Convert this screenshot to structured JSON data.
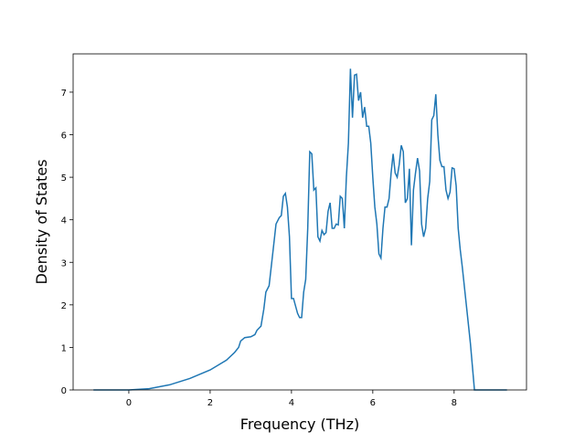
{
  "chart_data": {
    "type": "line",
    "x_label": "Frequency (THz)",
    "y_label": "Density of States",
    "x": [
      -0.87,
      0,
      0.5,
      1,
      1.5,
      2,
      2.4,
      2.6,
      2.7,
      2.75,
      2.85,
      3.0,
      3.1,
      3.15,
      3.25,
      3.32,
      3.37,
      3.45,
      3.55,
      3.62,
      3.7,
      3.75,
      3.8,
      3.85,
      3.9,
      3.95,
      4.0,
      4.05,
      4.15,
      4.2,
      4.25,
      4.3,
      4.35,
      4.4,
      4.45,
      4.5,
      4.55,
      4.6,
      4.65,
      4.7,
      4.75,
      4.8,
      4.85,
      4.9,
      4.95,
      5.0,
      5.05,
      5.1,
      5.15,
      5.2,
      5.25,
      5.3,
      5.35,
      5.4,
      5.45,
      5.5,
      5.55,
      5.6,
      5.65,
      5.7,
      5.75,
      5.8,
      5.85,
      5.9,
      5.95,
      6.0,
      6.05,
      6.1,
      6.15,
      6.2,
      6.25,
      6.3,
      6.35,
      6.4,
      6.45,
      6.5,
      6.55,
      6.6,
      6.65,
      6.7,
      6.75,
      6.8,
      6.85,
      6.9,
      6.95,
      7.0,
      7.05,
      7.1,
      7.15,
      7.2,
      7.25,
      7.3,
      7.35,
      7.4,
      7.45,
      7.5,
      7.55,
      7.6,
      7.65,
      7.7,
      7.75,
      7.8,
      7.85,
      7.9,
      7.95,
      8.0,
      8.05,
      8.1,
      8.15,
      8.2,
      8.3,
      8.4,
      8.5,
      9.3
    ],
    "series": [
      {
        "name": "DOS",
        "color": "#1f77b4",
        "values": [
          0,
          0,
          0.03,
          0.12,
          0.27,
          0.47,
          0.7,
          0.88,
          1.0,
          1.15,
          1.23,
          1.25,
          1.3,
          1.4,
          1.5,
          1.9,
          2.3,
          2.45,
          3.3,
          3.9,
          4.05,
          4.1,
          4.55,
          4.62,
          4.3,
          3.6,
          2.15,
          2.15,
          1.8,
          1.7,
          1.7,
          2.3,
          2.6,
          3.8,
          5.6,
          5.55,
          4.7,
          4.75,
          3.6,
          3.5,
          3.75,
          3.65,
          3.7,
          4.2,
          4.4,
          3.8,
          3.8,
          3.9,
          3.88,
          4.55,
          4.5,
          3.8,
          5.0,
          5.8,
          7.55,
          6.4,
          7.4,
          7.42,
          6.8,
          7.0,
          6.4,
          6.65,
          6.2,
          6.2,
          5.8,
          5.0,
          4.3,
          3.9,
          3.2,
          3.1,
          3.8,
          4.3,
          4.3,
          4.5,
          5.1,
          5.55,
          5.1,
          5.0,
          5.3,
          5.75,
          5.6,
          4.4,
          4.5,
          5.2,
          3.4,
          4.7,
          5.1,
          5.45,
          5.15,
          3.9,
          3.6,
          3.8,
          4.5,
          4.9,
          6.35,
          6.45,
          6.95,
          6.0,
          5.4,
          5.25,
          5.25,
          4.7,
          4.5,
          4.65,
          5.22,
          5.2,
          4.8,
          3.8,
          3.3,
          2.9,
          2.0,
          1.1,
          0,
          0
        ]
      }
    ],
    "xlim": [
      -1.37,
      9.78
    ],
    "ylim": [
      0,
      7.9
    ],
    "xticks": [
      0,
      2,
      4,
      6,
      8
    ],
    "yticks": [
      0,
      1,
      2,
      3,
      4,
      5,
      6,
      7
    ]
  }
}
